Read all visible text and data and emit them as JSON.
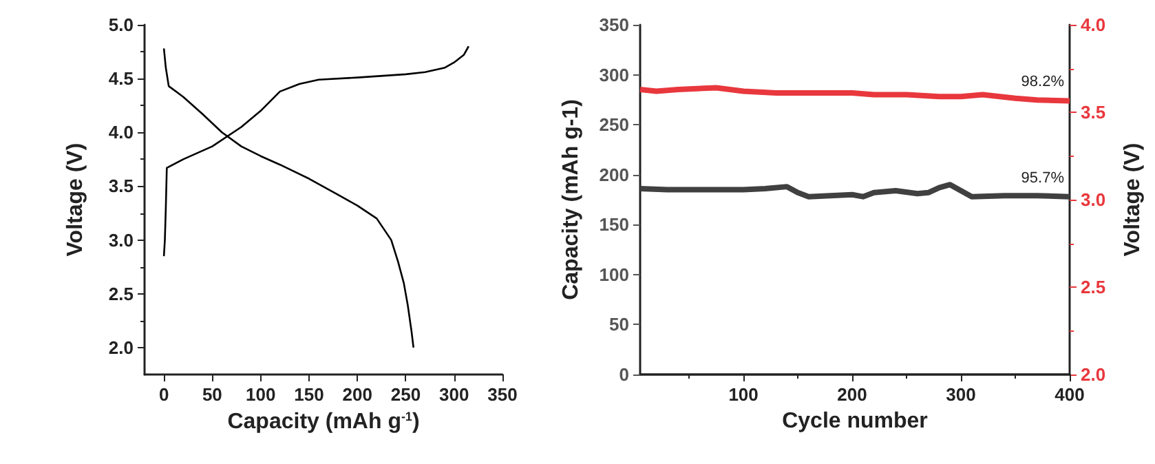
{
  "chart_data": [
    {
      "type": "line",
      "xlabel": "Capacity (mAh g$^{-1}$)",
      "ylabel": "Voltage (V)",
      "xlim": [
        -20,
        350
      ],
      "xticks": [
        0,
        50,
        100,
        150,
        200,
        250,
        300,
        350
      ],
      "ylim": [
        1.75,
        5.0
      ],
      "yticks": [
        {
          "value": 2,
          "label": "2.0"
        },
        2.5,
        {
          "value": 3,
          "label": "3.0"
        },
        3.5,
        {
          "value": 4,
          "label": "4.0"
        },
        4.5,
        {
          "value": 5,
          "label": "5.0"
        }
      ],
      "grid": false,
      "series": [
        {
          "color": "#000000",
          "x": [
            0,
            1,
            2,
            3,
            20,
            50,
            80,
            100,
            120,
            140,
            160,
            200,
            250,
            270,
            290,
            300,
            310,
            315
          ],
          "values": [
            2.85,
            3.0,
            3.3,
            3.67,
            3.75,
            3.87,
            4.05,
            4.2,
            4.38,
            4.45,
            4.49,
            4.51,
            4.54,
            4.56,
            4.6,
            4.65,
            4.72,
            4.8
          ]
        },
        {
          "color": "#000000",
          "x": [
            0,
            2,
            5,
            20,
            40,
            60,
            80,
            100,
            120,
            150,
            180,
            200,
            220,
            235,
            242,
            248,
            252,
            256,
            258
          ],
          "values": [
            4.78,
            4.6,
            4.43,
            4.33,
            4.17,
            4.0,
            3.87,
            3.78,
            3.7,
            3.57,
            3.42,
            3.32,
            3.2,
            3.0,
            2.8,
            2.6,
            2.4,
            2.15,
            2.0
          ]
        }
      ]
    },
    {
      "type": "line",
      "xlabel": "Cycle number",
      "ylabel": "Capacity (mAh g-1)",
      "y2label": "Voltage (V)",
      "xlim": [
        5,
        400
      ],
      "xticks": [
        100,
        200,
        300,
        400
      ],
      "ylim": [
        0,
        350
      ],
      "yticks": [
        0,
        50,
        100,
        150,
        200,
        250,
        300,
        350
      ],
      "y2lim": [
        2,
        4
      ],
      "y2ticks": [
        {
          "value": 2,
          "label": "2.0"
        },
        2.5,
        {
          "value": 3,
          "label": "3.0"
        },
        3.5,
        {
          "value": 4,
          "label": "4.0"
        }
      ],
      "grid": false,
      "annotations": [
        "95.7%",
        "98.2%"
      ],
      "series": [
        {
          "color": "#404040",
          "x": [
            5,
            30,
            60,
            100,
            120,
            140,
            150,
            160,
            200,
            210,
            220,
            240,
            260,
            270,
            280,
            290,
            300,
            310,
            340,
            370,
            400
          ],
          "values": [
            186,
            185,
            185,
            185,
            186,
            188,
            182,
            178,
            180,
            178,
            182,
            184,
            181,
            182,
            187,
            190,
            184,
            178,
            179,
            179,
            178
          ]
        },
        {
          "color": "#e8383d",
          "axis": "y2",
          "x": [
            5,
            20,
            40,
            75,
            100,
            130,
            150,
            200,
            220,
            250,
            280,
            300,
            320,
            350,
            370,
            400
          ],
          "values": [
            3.63,
            3.62,
            3.63,
            3.64,
            3.62,
            3.61,
            3.61,
            3.61,
            3.6,
            3.6,
            3.59,
            3.59,
            3.6,
            3.58,
            3.57,
            3.565
          ]
        }
      ]
    }
  ]
}
